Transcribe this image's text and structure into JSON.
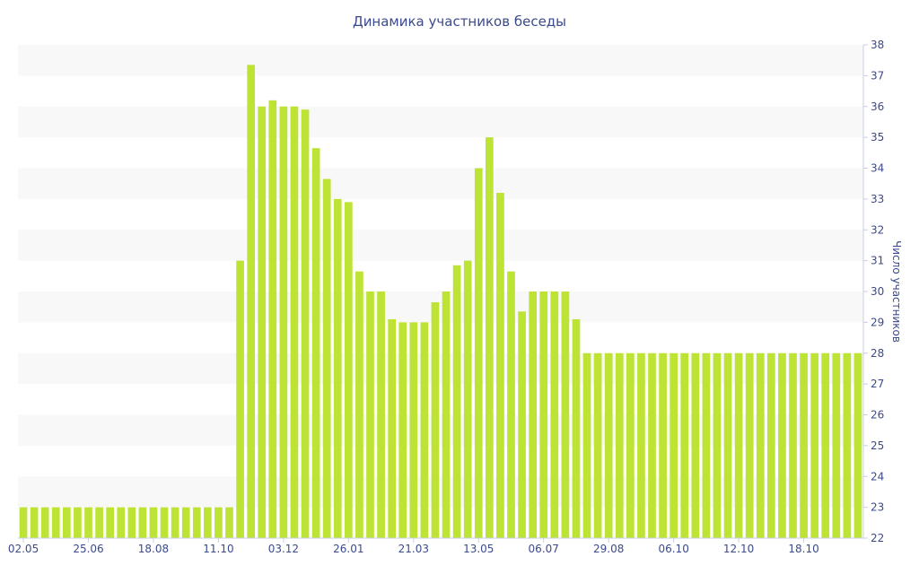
{
  "chart_data": {
    "type": "bar",
    "title": "Динамика участников беседы",
    "xlabel": "",
    "ylabel": "Число участников",
    "ylim": [
      22,
      38
    ],
    "yticks": [
      22,
      23,
      24,
      25,
      26,
      27,
      28,
      29,
      30,
      31,
      32,
      33,
      34,
      35,
      36,
      37,
      38
    ],
    "y_axis_position": "right",
    "bar_color": "#bde335",
    "band_color": "#f8f8f8",
    "text_color": "#3b4a8c",
    "x_tick_labels": [
      {
        "index": 0,
        "label": "02.05"
      },
      {
        "index": 6,
        "label": "25.06"
      },
      {
        "index": 12,
        "label": "18.08"
      },
      {
        "index": 18,
        "label": "11.10"
      },
      {
        "index": 24,
        "label": "03.12"
      },
      {
        "index": 30,
        "label": "26.01"
      },
      {
        "index": 36,
        "label": "21.03"
      },
      {
        "index": 42,
        "label": "13.05"
      },
      {
        "index": 48,
        "label": "06.07"
      },
      {
        "index": 54,
        "label": "29.08"
      },
      {
        "index": 60,
        "label": "06.10"
      },
      {
        "index": 66,
        "label": "12.10"
      },
      {
        "index": 72,
        "label": "18.10"
      }
    ],
    "values": [
      23,
      23,
      23,
      23,
      23,
      23,
      23,
      23,
      23,
      23,
      23,
      23,
      23,
      23,
      23,
      23,
      23,
      23,
      23,
      23,
      31,
      37.35,
      36,
      36.2,
      36,
      36,
      35.9,
      34.65,
      33.65,
      33,
      32.9,
      30.65,
      30,
      30,
      29.1,
      29,
      29,
      29,
      29.65,
      30,
      30.85,
      31,
      34,
      35,
      33.2,
      30.65,
      29.35,
      30,
      30,
      30,
      30,
      29.1,
      28,
      28,
      28,
      28,
      28,
      28,
      28,
      28,
      28,
      28,
      28,
      28,
      28,
      28,
      28,
      28,
      28,
      28,
      28,
      28,
      28,
      28,
      28,
      28,
      28,
      28
    ]
  }
}
